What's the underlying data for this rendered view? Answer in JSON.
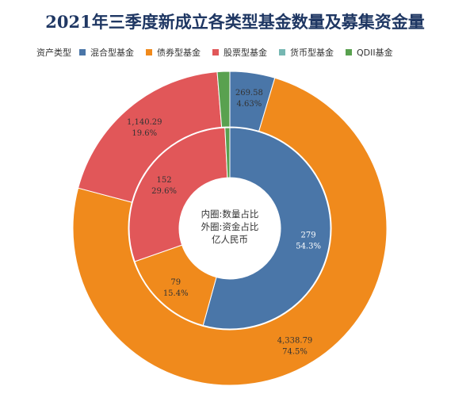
{
  "chart_data": {
    "type": "pie",
    "title": "2021年三季度新成立各类型基金数量及募集资金量",
    "legend_title": "资产类型",
    "legend_placement": "top-left",
    "categories": [
      "混合型基金",
      "债券型基金",
      "股票型基金",
      "货币型基金",
      "QDII基金"
    ],
    "colors": [
      "#4a76a8",
      "#f08a1c",
      "#e15759",
      "#76b7b2",
      "#59a14f"
    ],
    "center_text": [
      "内圈:数量占比",
      "外圈:资金占比",
      "亿人民币"
    ],
    "series": [
      {
        "ring": "inner",
        "values": [
          279,
          79,
          152,
          0,
          4
        ],
        "labels": [
          "279",
          "79",
          "152",
          "",
          ""
        ],
        "percent_labels": [
          "54.3%",
          "15.4%",
          "29.6%",
          "",
          ""
        ]
      },
      {
        "ring": "outer",
        "values": [
          269.58,
          4338.79,
          1140.29,
          0,
          75
        ],
        "labels": [
          "269.58",
          "4,338.79",
          "1,140.29",
          "",
          ""
        ],
        "percent_labels": [
          "4.63%",
          "74.5%",
          "19.6%",
          "",
          ""
        ]
      }
    ]
  }
}
